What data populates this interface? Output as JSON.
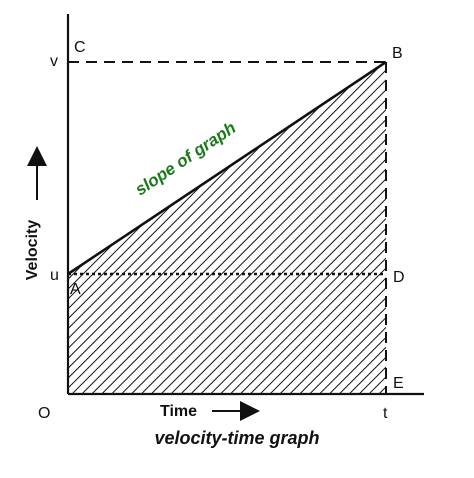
{
  "diagram": {
    "point_labels": {
      "A": "A",
      "B": "B",
      "C": "C",
      "D": "D",
      "E": "E",
      "O": "O"
    },
    "tick_labels": {
      "u": "u",
      "v": "v",
      "t": "t"
    },
    "axis_labels": {
      "x": "Time",
      "y": "Velocity"
    },
    "annotation": "slope of graph",
    "caption": "velocity-time graph",
    "colors": {
      "line": "#111111",
      "annotation": "#1a7a1a"
    }
  }
}
